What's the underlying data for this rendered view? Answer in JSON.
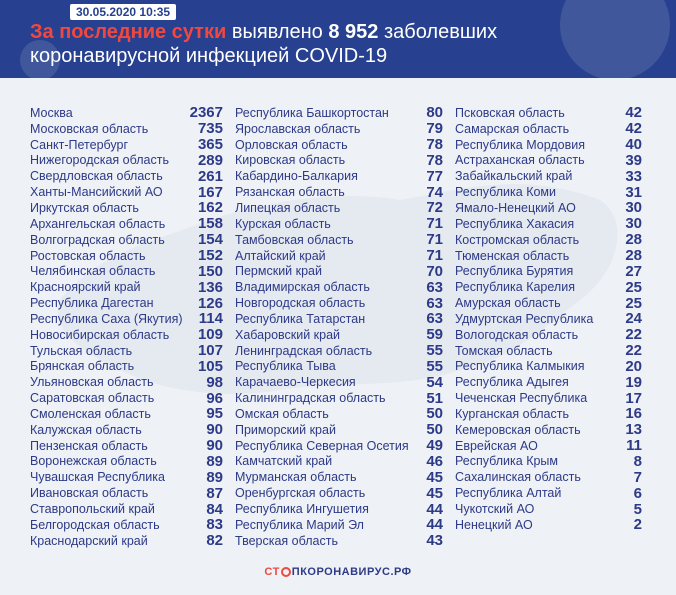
{
  "header": {
    "date": "30.05.2020 10:35",
    "title_highlight": "За последние сутки",
    "title_mid": "выявлено",
    "title_number": "8 952",
    "title_rest": "заболевших",
    "title_line2": "коронавирусной инфекцией COVID-19"
  },
  "colors": {
    "header_bg": "#27408f",
    "accent": "#f0483e",
    "text": "#2d3a87"
  },
  "columns": [
    [
      {
        "name": "Москва",
        "value": "2367"
      },
      {
        "name": "Московская область",
        "value": "735"
      },
      {
        "name": "Санкт-Петербург",
        "value": "365"
      },
      {
        "name": "Нижегородская область",
        "value": "289"
      },
      {
        "name": "Свердловская область",
        "value": "261"
      },
      {
        "name": "Ханты-Мансийский АО",
        "value": "167"
      },
      {
        "name": "Иркутская область",
        "value": "162"
      },
      {
        "name": "Архангельская область",
        "value": "158"
      },
      {
        "name": "Волгоградская область",
        "value": "154"
      },
      {
        "name": "Ростовская область",
        "value": "152"
      },
      {
        "name": "Челябинская область",
        "value": "150"
      },
      {
        "name": "Красноярский край",
        "value": "136"
      },
      {
        "name": "Республика Дагестан",
        "value": "126"
      },
      {
        "name": "Республика Саха (Якутия)",
        "value": "114"
      },
      {
        "name": "Новосибирская область",
        "value": "109"
      },
      {
        "name": "Тульская область",
        "value": "107"
      },
      {
        "name": "Брянская область",
        "value": "105"
      },
      {
        "name": "Ульяновская область",
        "value": "98"
      },
      {
        "name": "Саратовская область",
        "value": "96"
      },
      {
        "name": "Смоленская область",
        "value": "95"
      },
      {
        "name": "Калужская область",
        "value": "90"
      },
      {
        "name": "Пензенская область",
        "value": "90"
      },
      {
        "name": "Воронежская область",
        "value": "89"
      },
      {
        "name": "Чувашская Республика",
        "value": "89"
      },
      {
        "name": "Ивановская область",
        "value": "87"
      },
      {
        "name": "Ставропольский край",
        "value": "84"
      },
      {
        "name": "Белгородская область",
        "value": "83"
      },
      {
        "name": "Краснодарский край",
        "value": "82"
      }
    ],
    [
      {
        "name": "Республика Башкортостан",
        "value": "80"
      },
      {
        "name": "Ярославская область",
        "value": "79"
      },
      {
        "name": "Орловская область",
        "value": "78"
      },
      {
        "name": "Кировская область",
        "value": "78"
      },
      {
        "name": "Кабардино-Балкария",
        "value": "77"
      },
      {
        "name": "Рязанская область",
        "value": "74"
      },
      {
        "name": "Липецкая область",
        "value": "72"
      },
      {
        "name": "Курская область",
        "value": "71"
      },
      {
        "name": "Тамбовская область",
        "value": "71"
      },
      {
        "name": "Алтайский край",
        "value": "71"
      },
      {
        "name": "Пермский край",
        "value": "70"
      },
      {
        "name": "Владимирская область",
        "value": "63"
      },
      {
        "name": "Новгородская область",
        "value": "63"
      },
      {
        "name": "Республика Татарстан",
        "value": "63"
      },
      {
        "name": "Хабаровский край",
        "value": "59"
      },
      {
        "name": "Ленинградская область",
        "value": "55"
      },
      {
        "name": "Республика Тыва",
        "value": "55"
      },
      {
        "name": "Карачаево-Черкесия",
        "value": "54"
      },
      {
        "name": "Калининградская область",
        "value": "51"
      },
      {
        "name": "Омская область",
        "value": "50"
      },
      {
        "name": "Приморский край",
        "value": "50"
      },
      {
        "name": "Республика Северная Осетия",
        "value": "49"
      },
      {
        "name": "Камчатский край",
        "value": "46"
      },
      {
        "name": "Мурманская область",
        "value": "45"
      },
      {
        "name": "Оренбургская область",
        "value": "45"
      },
      {
        "name": "Республика Ингушетия",
        "value": "44"
      },
      {
        "name": "Республика Марий Эл",
        "value": "44"
      },
      {
        "name": "Тверская область",
        "value": "43"
      }
    ],
    [
      {
        "name": "Псковская область",
        "value": "42"
      },
      {
        "name": "Самарская область",
        "value": "42"
      },
      {
        "name": "Республика Мордовия",
        "value": "40"
      },
      {
        "name": "Астраханская область",
        "value": "39"
      },
      {
        "name": "Забайкальский край",
        "value": "33"
      },
      {
        "name": "Республика Коми",
        "value": "31"
      },
      {
        "name": "Ямало-Ненецкий АО",
        "value": "30"
      },
      {
        "name": "Республика Хакасия",
        "value": "30"
      },
      {
        "name": "Костромская область",
        "value": "28"
      },
      {
        "name": "Тюменская область",
        "value": "28"
      },
      {
        "name": "Республика Бурятия",
        "value": "27"
      },
      {
        "name": "Республика Карелия",
        "value": "25"
      },
      {
        "name": "Амурская область",
        "value": "25"
      },
      {
        "name": "Удмуртская Республика",
        "value": "24"
      },
      {
        "name": "Вологодская область",
        "value": "22"
      },
      {
        "name": "Томская область",
        "value": "22"
      },
      {
        "name": "Республика Калмыкия",
        "value": "20"
      },
      {
        "name": "Республика Адыгея",
        "value": "19"
      },
      {
        "name": "Чеченская Республика",
        "value": "17"
      },
      {
        "name": "Курганская область",
        "value": "16"
      },
      {
        "name": "Кемеровская область",
        "value": "13"
      },
      {
        "name": "Еврейская АО",
        "value": "11"
      },
      {
        "name": "Республика Крым",
        "value": "8"
      },
      {
        "name": "Сахалинская область",
        "value": "7"
      },
      {
        "name": "Республика Алтай",
        "value": "6"
      },
      {
        "name": "Чукотский АО",
        "value": "5"
      },
      {
        "name": "Ненецкий АО",
        "value": "2"
      }
    ]
  ],
  "footer": {
    "logo_prefix": "СТ",
    "logo_suffix": "ПКОРОНАВИРУС.РФ"
  }
}
